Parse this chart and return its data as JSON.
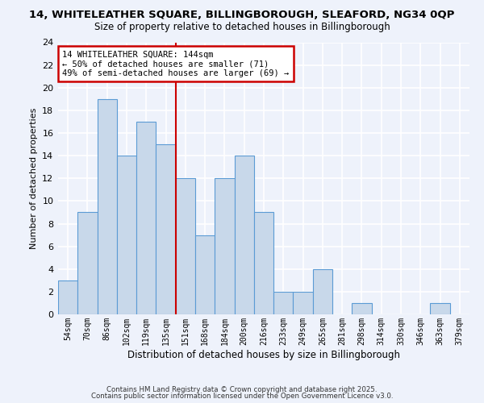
{
  "title": "14, WHITELEATHER SQUARE, BILLINGBOROUGH, SLEAFORD, NG34 0QP",
  "subtitle": "Size of property relative to detached houses in Billingborough",
  "xlabel": "Distribution of detached houses by size in Billingborough",
  "ylabel": "Number of detached properties",
  "bar_color": "#c8d8ea",
  "bar_edge_color": "#5b9bd5",
  "background_color": "#eef2fb",
  "grid_color": "#ffffff",
  "bin_labels": [
    "54sqm",
    "70sqm",
    "86sqm",
    "102sqm",
    "119sqm",
    "135sqm",
    "151sqm",
    "168sqm",
    "184sqm",
    "200sqm",
    "216sqm",
    "233sqm",
    "249sqm",
    "265sqm",
    "281sqm",
    "298sqm",
    "314sqm",
    "330sqm",
    "346sqm",
    "363sqm",
    "379sqm"
  ],
  "bar_heights": [
    3,
    9,
    19,
    14,
    17,
    15,
    12,
    7,
    12,
    14,
    9,
    2,
    2,
    4,
    0,
    1,
    0,
    0,
    0,
    1,
    0
  ],
  "vline_x": 5.5,
  "vline_color": "#cc0000",
  "ylim": [
    0,
    24
  ],
  "yticks": [
    0,
    2,
    4,
    6,
    8,
    10,
    12,
    14,
    16,
    18,
    20,
    22,
    24
  ],
  "annotation_title": "14 WHITELEATHER SQUARE: 144sqm",
  "annotation_line1": "← 50% of detached houses are smaller (71)",
  "annotation_line2": "49% of semi-detached houses are larger (69) →",
  "annotation_box_color": "#ffffff",
  "annotation_border_color": "#cc0000",
  "footer1": "Contains HM Land Registry data © Crown copyright and database right 2025.",
  "footer2": "Contains public sector information licensed under the Open Government Licence v3.0."
}
